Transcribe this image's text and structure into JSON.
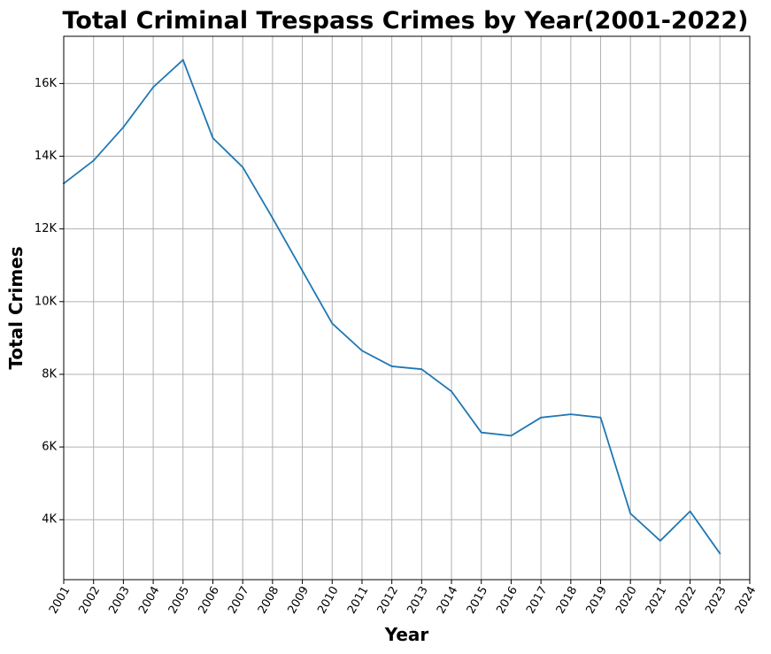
{
  "chart_data": {
    "type": "line",
    "title": "Total Criminal Trespass Crimes by Year(2001-2022)",
    "xlabel": "Year",
    "ylabel": "Total Crimes",
    "x": [
      2001,
      2002,
      2003,
      2004,
      2005,
      2006,
      2007,
      2008,
      2009,
      2010,
      2011,
      2012,
      2013,
      2014,
      2015,
      2016,
      2017,
      2018,
      2019,
      2020,
      2021,
      2022,
      2023
    ],
    "xticks": [
      "2001",
      "2002",
      "2003",
      "2004",
      "2005",
      "2006",
      "2007",
      "2008",
      "2009",
      "2010",
      "2011",
      "2012",
      "2013",
      "2014",
      "2015",
      "2016",
      "2017",
      "2018",
      "2019",
      "2020",
      "2021",
      "2022",
      "2023",
      "2024"
    ],
    "xlim": [
      2001,
      2024
    ],
    "ylim": [
      2350,
      17300
    ],
    "yticks": [
      4000,
      6000,
      8000,
      10000,
      12000,
      14000,
      16000
    ],
    "ytick_labels": [
      "4K",
      "6K",
      "8K",
      "10K",
      "12K",
      "14K",
      "16K"
    ],
    "grid": true,
    "series": [
      {
        "color": "#1f77b4",
        "values": [
          13250,
          13880,
          14800,
          15900,
          16650,
          14500,
          13700,
          12300,
          10850,
          9400,
          8650,
          8220,
          8140,
          7530,
          6400,
          6310,
          6810,
          6900,
          6810,
          4170,
          3420,
          4230,
          3070
        ]
      }
    ]
  }
}
